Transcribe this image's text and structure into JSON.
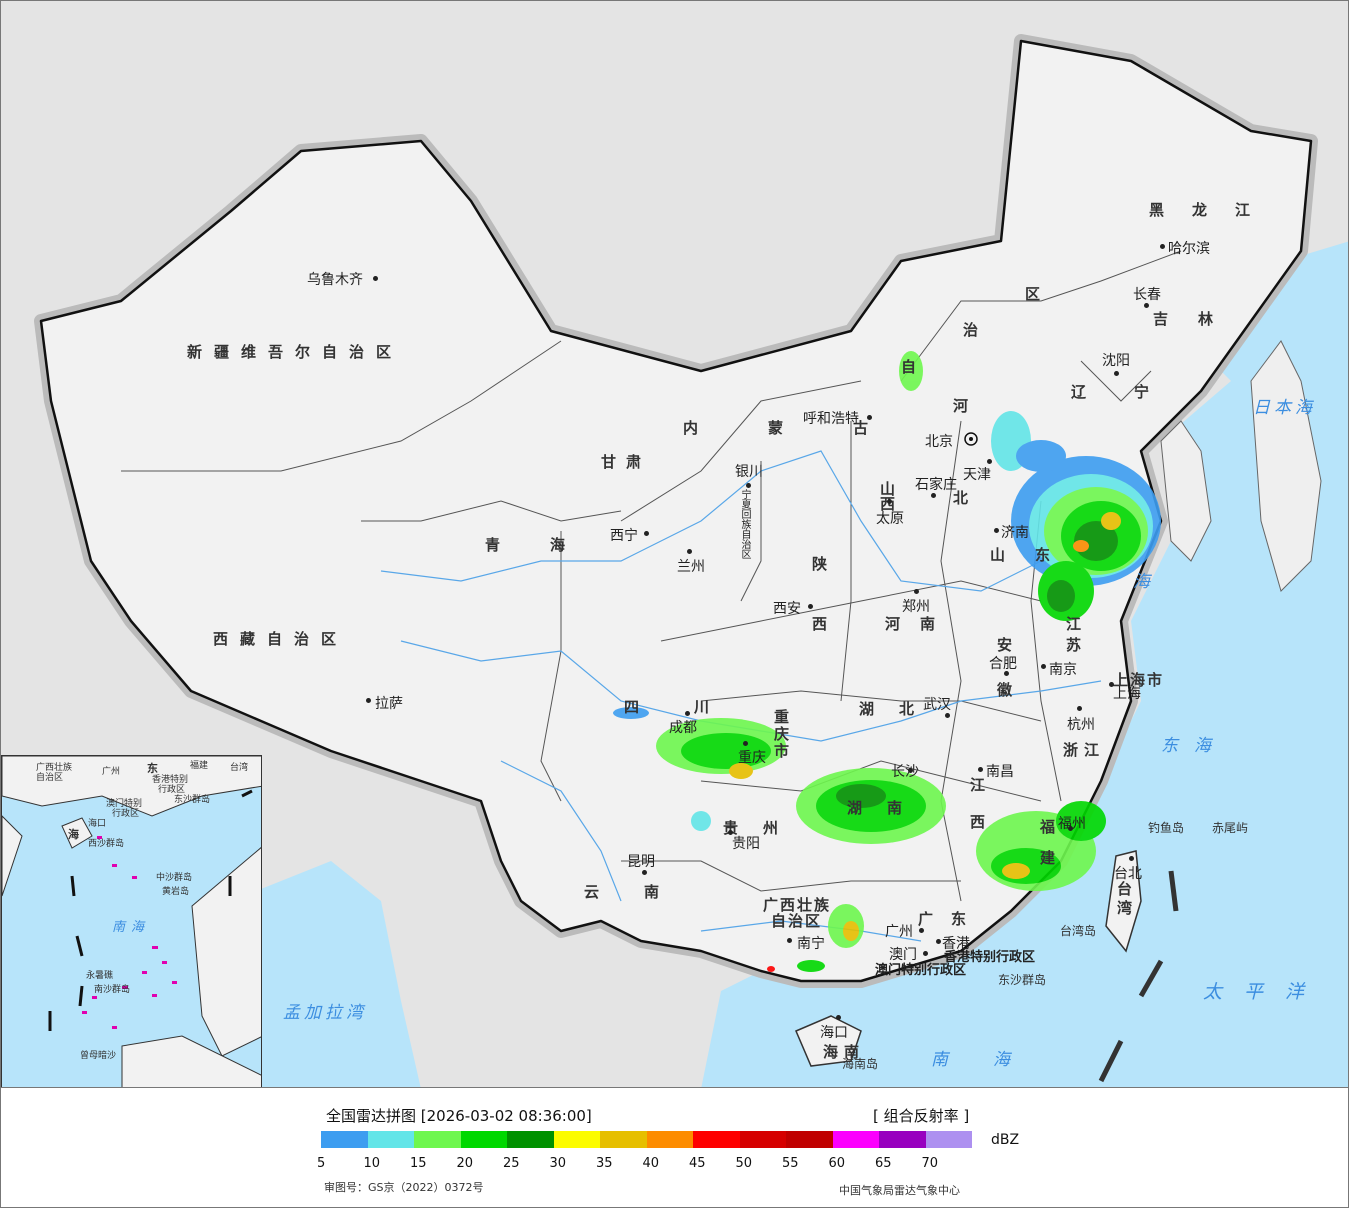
{
  "map": {
    "provinces": [
      "新疆维吾尔自治区",
      "西藏自治区",
      "青海",
      "甘肃",
      "内蒙古",
      "四川",
      "云南",
      "黑龙江",
      "吉林",
      "辽宁",
      "河北",
      "山西",
      "陕西",
      "河南",
      "山东",
      "江苏",
      "安徽",
      "湖北",
      "湖南",
      "江西",
      "浙江",
      "福建",
      "广东",
      "广西壮族",
      "自治区",
      "贵州",
      "海南",
      "台湾",
      "重庆市",
      "上海市",
      "北京",
      "天津",
      "宁夏回族自治区",
      "香港特别行政区",
      "澳门特别行政区",
      "区",
      "治",
      "自",
      "河",
      "北"
    ],
    "cities": [
      "乌鲁木齐",
      "拉萨",
      "西宁",
      "兰州",
      "银川",
      "呼和浩特",
      "北京",
      "天津",
      "石家庄",
      "太原",
      "济南",
      "郑州",
      "西安",
      "成都",
      "重庆",
      "合肥",
      "南京",
      "上海",
      "杭州",
      "武汉",
      "长沙",
      "南昌",
      "福州",
      "贵阳",
      "昆明",
      "南宁",
      "广州",
      "澳门",
      "香港",
      "海口",
      "台北",
      "沈阳",
      "长春",
      "哈尔滨"
    ],
    "seas": [
      "日本海",
      "东海",
      "太平洋",
      "南海",
      "孟加拉湾",
      "海"
    ],
    "islands": [
      "钓鱼岛",
      "赤尾屿",
      "台湾岛",
      "东沙群岛",
      "海南岛"
    ],
    "inset": {
      "sea": "南海",
      "labels": [
        "广州",
        "东",
        "福建",
        "台湾",
        "香港特别",
        "行政区",
        "澳门特别",
        "行政区",
        "东沙群岛",
        "海",
        "西沙群岛",
        "中沙群岛",
        "黄岩岛",
        "南沙群岛",
        "海口",
        "永暑礁",
        "曾母暗沙",
        "广西壮族",
        "自治区"
      ]
    }
  },
  "footer": {
    "title": "全国雷达拼图 [2026-03-02 08:36:00]",
    "product": "[ 组合反射率 ]",
    "unit": "dBZ",
    "approval": "审图号：GS京（2022）0372号",
    "credit": "中国气象局雷达气象中心"
  },
  "legend": {
    "colors": [
      "#3d9df0",
      "#63e5e8",
      "#6ef74e",
      "#00d800",
      "#009100",
      "#fcfc00",
      "#e6bf00",
      "#fd8c00",
      "#fe0000",
      "#d60000",
      "#c00000",
      "#fc00fe",
      "#9800bf",
      "#ad90f0"
    ],
    "ticks": [
      "5",
      "10",
      "15",
      "20",
      "25",
      "30",
      "35",
      "40",
      "45",
      "50",
      "55",
      "60",
      "65",
      "70"
    ]
  }
}
